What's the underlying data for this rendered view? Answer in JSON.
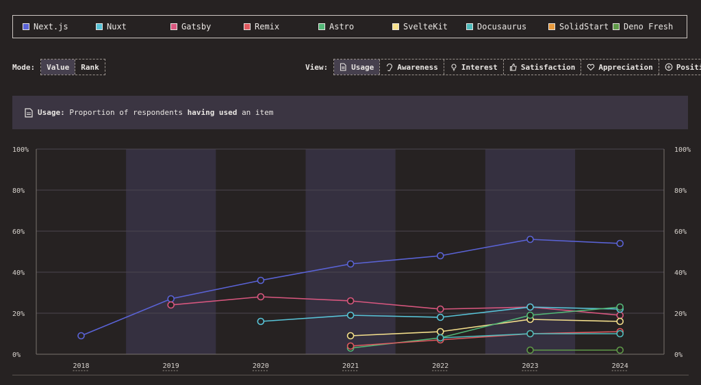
{
  "legend": [
    {
      "label": "Next.js",
      "color": "#5a63d6"
    },
    {
      "label": "Nuxt",
      "color": "#58c4d8"
    },
    {
      "label": "Gatsby",
      "color": "#d9577f"
    },
    {
      "label": "Remix",
      "color": "#e05a60"
    },
    {
      "label": "Astro",
      "color": "#53b878"
    },
    {
      "label": "SvelteKit",
      "color": "#f5e08c"
    },
    {
      "label": "Docusaurus",
      "color": "#4fbcbc"
    },
    {
      "label": "SolidStart",
      "color": "#e89a3c"
    },
    {
      "label": "Deno Fresh",
      "color": "#5f9a48"
    }
  ],
  "mode": {
    "label": "Mode:",
    "options": [
      "Value",
      "Rank"
    ],
    "active": "Value"
  },
  "view": {
    "label": "View:",
    "options": [
      {
        "label": "Usage",
        "icon": "document-icon"
      },
      {
        "label": "Awareness",
        "icon": "ear-icon"
      },
      {
        "label": "Interest",
        "icon": "lightbulb-icon"
      },
      {
        "label": "Satisfaction",
        "icon": "thumbs-up-icon"
      },
      {
        "label": "Appreciation",
        "icon": "heart-icon"
      },
      {
        "label": "Positivity",
        "icon": "plus-circle-icon"
      }
    ],
    "active": "Usage"
  },
  "info": {
    "term": "Usage:",
    "before": "Proportion of respondents",
    "emph": "having used",
    "after": "an item"
  },
  "chart_data": {
    "type": "line",
    "x": [
      "2018",
      "2019",
      "2020",
      "2021",
      "2022",
      "2023",
      "2024"
    ],
    "ylim": [
      0,
      100
    ],
    "yticks": [
      "0%",
      "20%",
      "40%",
      "60%",
      "80%",
      "100%"
    ],
    "grid": true,
    "series": [
      {
        "name": "Next.js",
        "color": "#5a63d6",
        "values": [
          9,
          27,
          36,
          44,
          48,
          56,
          54
        ]
      },
      {
        "name": "Gatsby",
        "color": "#d9577f",
        "values": [
          null,
          24,
          28,
          26,
          22,
          23,
          19
        ]
      },
      {
        "name": "Nuxt",
        "color": "#58c4d8",
        "values": [
          null,
          null,
          16,
          19,
          18,
          23,
          22
        ]
      },
      {
        "name": "SvelteKit",
        "color": "#f5e08c",
        "values": [
          null,
          null,
          null,
          9,
          11,
          17,
          16
        ]
      },
      {
        "name": "Astro",
        "color": "#53b878",
        "values": [
          null,
          null,
          null,
          3,
          8,
          19,
          23
        ]
      },
      {
        "name": "Remix",
        "color": "#e05a60",
        "values": [
          null,
          null,
          null,
          4,
          7,
          10,
          11
        ]
      },
      {
        "name": "Docusaurus",
        "color": "#4fbcbc",
        "values": [
          null,
          null,
          null,
          null,
          8,
          10,
          10
        ]
      },
      {
        "name": "Deno Fresh",
        "color": "#5f9a48",
        "values": [
          null,
          null,
          null,
          null,
          null,
          2,
          2
        ]
      }
    ]
  }
}
